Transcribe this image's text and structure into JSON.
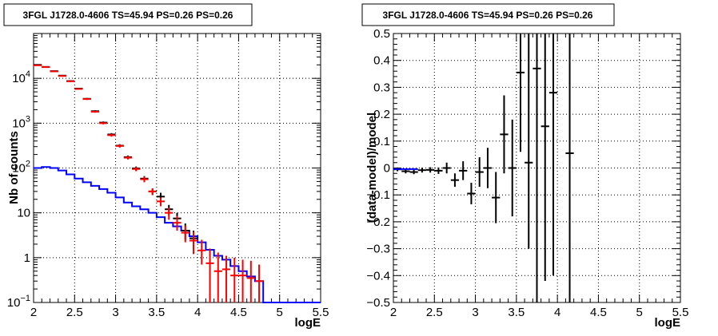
{
  "chart_data": [
    {
      "type": "line",
      "title": "3FGL J1728.0-4606 TS=45.94 PS=0.26 PS=0.26",
      "xlabel": "logE",
      "ylabel": "Nb of counts",
      "xlim": [
        2,
        5.5
      ],
      "ylim": [
        0.1,
        100000
      ],
      "yscale": "log",
      "grid": true,
      "xticks": [
        {
          "value": 2,
          "label": "2"
        },
        {
          "value": 2.5,
          "label": "2.5"
        },
        {
          "value": 3,
          "label": "3"
        },
        {
          "value": 3.5,
          "label": "3.5"
        },
        {
          "value": 4,
          "label": "4"
        },
        {
          "value": 4.5,
          "label": "4.5"
        },
        {
          "value": 5,
          "label": "5"
        },
        {
          "value": 5.5,
          "label": "5.5"
        }
      ],
      "yticks": [
        {
          "value": 0.1,
          "label": "10",
          "exp": "−1"
        },
        {
          "value": 1,
          "label": "1",
          "exp": ""
        },
        {
          "value": 10,
          "label": "10",
          "exp": ""
        },
        {
          "value": 100,
          "label": "10",
          "exp": "2"
        },
        {
          "value": 1000,
          "label": "10",
          "exp": "3"
        },
        {
          "value": 10000,
          "label": "10",
          "exp": "4"
        }
      ],
      "series": [
        {
          "color": "#0000ff",
          "kind": "step",
          "edges": [
            2.0,
            2.1,
            2.2,
            2.3,
            2.4,
            2.5,
            2.6,
            2.7,
            2.8,
            2.9,
            3.0,
            3.1,
            3.2,
            3.3,
            3.4,
            3.5,
            3.6,
            3.7,
            3.8,
            3.9,
            4.0,
            4.1,
            4.2,
            4.3,
            4.4,
            4.5,
            4.6,
            4.7,
            4.8,
            4.9,
            5.0,
            5.1,
            5.2,
            5.3,
            5.4,
            5.5
          ],
          "values": [
            100,
            105,
            100,
            88,
            72,
            58,
            48,
            40,
            34,
            28,
            22,
            17,
            14,
            12,
            10,
            8,
            6,
            5,
            4,
            3,
            2.2,
            1.5,
            1.1,
            0.9,
            0.65,
            0.5,
            0.38,
            0.3,
            0.1,
            0.1,
            0.1,
            0.1,
            0.1,
            0.1,
            0.1
          ]
        },
        {
          "color": "#000000",
          "kind": "points",
          "points": [
            {
              "x": 2.05,
              "y": 20000,
              "lo": 19500,
              "hi": 20500
            },
            {
              "x": 2.15,
              "y": 18000,
              "lo": 17500,
              "hi": 18500
            },
            {
              "x": 2.25,
              "y": 14500,
              "lo": 14100,
              "hi": 14900
            },
            {
              "x": 2.35,
              "y": 11500,
              "lo": 11100,
              "hi": 11900
            },
            {
              "x": 2.45,
              "y": 8700,
              "lo": 8400,
              "hi": 9000
            },
            {
              "x": 2.55,
              "y": 5900,
              "lo": 5700,
              "hi": 6100
            },
            {
              "x": 2.65,
              "y": 3500,
              "lo": 3350,
              "hi": 3650
            },
            {
              "x": 2.75,
              "y": 1850,
              "lo": 1760,
              "hi": 1940
            },
            {
              "x": 2.85,
              "y": 1030,
              "lo": 970,
              "hi": 1090
            },
            {
              "x": 2.95,
              "y": 560,
              "lo": 520,
              "hi": 600
            },
            {
              "x": 3.05,
              "y": 315,
              "lo": 290,
              "hi": 340
            },
            {
              "x": 3.15,
              "y": 175,
              "lo": 160,
              "hi": 190
            },
            {
              "x": 3.25,
              "y": 98,
              "lo": 88,
              "hi": 108
            },
            {
              "x": 3.35,
              "y": 58,
              "lo": 50,
              "hi": 66
            },
            {
              "x": 3.45,
              "y": 30,
              "lo": 25,
              "hi": 35
            },
            {
              "x": 3.55,
              "y": 23,
              "lo": 18,
              "hi": 28
            },
            {
              "x": 3.65,
              "y": 12,
              "lo": 9,
              "hi": 15
            },
            {
              "x": 3.75,
              "y": 7.5,
              "lo": 5,
              "hi": 10
            },
            {
              "x": 3.85,
              "y": 4,
              "lo": 2.5,
              "hi": 5.8
            },
            {
              "x": 3.95,
              "y": 2.7,
              "lo": 1.6,
              "hi": 4
            }
          ]
        },
        {
          "color": "#ff0000",
          "kind": "points",
          "points": [
            {
              "x": 2.05,
              "y": 19500,
              "lo": 19000,
              "hi": 20000
            },
            {
              "x": 2.15,
              "y": 17800,
              "lo": 17300,
              "hi": 18300
            },
            {
              "x": 2.25,
              "y": 14300,
              "lo": 13900,
              "hi": 14700
            },
            {
              "x": 2.35,
              "y": 11300,
              "lo": 10900,
              "hi": 11700
            },
            {
              "x": 2.45,
              "y": 8600,
              "lo": 8300,
              "hi": 8900
            },
            {
              "x": 2.55,
              "y": 5800,
              "lo": 5600,
              "hi": 6000
            },
            {
              "x": 2.65,
              "y": 3450,
              "lo": 3300,
              "hi": 3600
            },
            {
              "x": 2.75,
              "y": 1800,
              "lo": 1710,
              "hi": 1890
            },
            {
              "x": 2.85,
              "y": 1000,
              "lo": 940,
              "hi": 1060
            },
            {
              "x": 2.95,
              "y": 540,
              "lo": 500,
              "hi": 580
            },
            {
              "x": 3.05,
              "y": 310,
              "lo": 285,
              "hi": 335
            },
            {
              "x": 3.15,
              "y": 170,
              "lo": 155,
              "hi": 185
            },
            {
              "x": 3.25,
              "y": 95,
              "lo": 85,
              "hi": 105
            },
            {
              "x": 3.35,
              "y": 56,
              "lo": 48,
              "hi": 64
            },
            {
              "x": 3.45,
              "y": 30,
              "lo": 25,
              "hi": 35
            },
            {
              "x": 3.55,
              "y": 18,
              "lo": 14,
              "hi": 22
            },
            {
              "x": 3.65,
              "y": 10,
              "lo": 7,
              "hi": 13
            },
            {
              "x": 3.75,
              "y": 6,
              "lo": 4,
              "hi": 8.5
            },
            {
              "x": 3.85,
              "y": 3.6,
              "lo": 2.2,
              "hi": 5.2
            },
            {
              "x": 3.95,
              "y": 2.4,
              "lo": 1.2,
              "hi": 3.8
            },
            {
              "x": 4.05,
              "y": 1.45,
              "lo": 0.7,
              "hi": 2.5
            },
            {
              "x": 4.15,
              "y": 0.75,
              "lo": 0.1,
              "hi": 1.6
            },
            {
              "x": 4.25,
              "y": 0.5,
              "lo": 0.1,
              "hi": 1.3
            },
            {
              "x": 4.35,
              "y": 0.55,
              "lo": 0.1,
              "hi": 1.1
            },
            {
              "x": 4.45,
              "y": 0.4,
              "lo": 0.1,
              "hi": 1.0
            },
            {
              "x": 4.55,
              "y": 0.4,
              "lo": 0.1,
              "hi": 0.9
            },
            {
              "x": 4.65,
              "y": 0.35,
              "lo": 0.1,
              "hi": 0.85
            },
            {
              "x": 4.75,
              "y": 0.3,
              "lo": 0.1,
              "hi": 0.7
            }
          ]
        }
      ]
    },
    {
      "type": "scatter",
      "title": "3FGL J1728.0-4606 TS=45.94 PS=0.26 PS=0.26",
      "xlabel": "logE",
      "ylabel": "(data-model)/model",
      "xlim": [
        2,
        5.5
      ],
      "ylim": [
        -0.5,
        0.5
      ],
      "grid": true,
      "xticks": [
        {
          "value": 2,
          "label": "2"
        },
        {
          "value": 2.5,
          "label": "2.5"
        },
        {
          "value": 3,
          "label": "3"
        },
        {
          "value": 3.5,
          "label": "3.5"
        },
        {
          "value": 4,
          "label": "4"
        },
        {
          "value": 4.5,
          "label": "4.5"
        },
        {
          "value": 5,
          "label": "5"
        },
        {
          "value": 5.5,
          "label": "5.5"
        }
      ],
      "yticks": [
        {
          "value": -0.5,
          "label": "−0.5"
        },
        {
          "value": -0.4,
          "label": "−0.4"
        },
        {
          "value": -0.3,
          "label": "−0.3"
        },
        {
          "value": -0.2,
          "label": "−0.2"
        },
        {
          "value": -0.1,
          "label": "−0.1"
        },
        {
          "value": 0,
          "label": "0"
        },
        {
          "value": 0.1,
          "label": "0.1"
        },
        {
          "value": 0.2,
          "label": "0.2"
        },
        {
          "value": 0.3,
          "label": "0.3"
        },
        {
          "value": 0.4,
          "label": "0.4"
        },
        {
          "value": 0.5,
          "label": "0.5"
        }
      ],
      "series": [
        {
          "color": "#000000",
          "kind": "points",
          "points": [
            {
              "x": 2.05,
              "y": -0.005,
              "lo": -0.012,
              "hi": 0.002
            },
            {
              "x": 2.15,
              "y": -0.012,
              "lo": -0.02,
              "hi": -0.004
            },
            {
              "x": 2.25,
              "y": -0.015,
              "lo": -0.023,
              "hi": -0.007
            },
            {
              "x": 2.35,
              "y": -0.008,
              "lo": -0.017,
              "hi": 0.001
            },
            {
              "x": 2.45,
              "y": -0.007,
              "lo": -0.017,
              "hi": 0.003
            },
            {
              "x": 2.55,
              "y": -0.01,
              "lo": -0.022,
              "hi": 0.002
            },
            {
              "x": 2.65,
              "y": 0.0,
              "lo": -0.02,
              "hi": 0.02
            },
            {
              "x": 2.75,
              "y": -0.045,
              "lo": -0.07,
              "hi": -0.02
            },
            {
              "x": 2.85,
              "y": -0.01,
              "lo": -0.045,
              "hi": 0.025
            },
            {
              "x": 2.95,
              "y": -0.095,
              "lo": -0.135,
              "hi": -0.055
            },
            {
              "x": 3.05,
              "y": -0.015,
              "lo": -0.07,
              "hi": 0.04
            },
            {
              "x": 3.15,
              "y": 0.0,
              "lo": -0.075,
              "hi": 0.075
            },
            {
              "x": 3.25,
              "y": -0.11,
              "lo": -0.205,
              "hi": -0.015
            },
            {
              "x": 3.35,
              "y": 0.125,
              "lo": -0.02,
              "hi": 0.27
            },
            {
              "x": 3.45,
              "y": 0.0,
              "lo": -0.18,
              "hi": 0.18
            },
            {
              "x": 3.55,
              "y": 0.355,
              "lo": 0.06,
              "hi": 0.5
            },
            {
              "x": 3.65,
              "y": 0.02,
              "lo": -0.3,
              "hi": 0.5
            },
            {
              "x": 3.75,
              "y": 0.37,
              "lo": -0.5,
              "hi": 0.5
            },
            {
              "x": 3.85,
              "y": 0.155,
              "lo": -0.42,
              "hi": 0.5
            },
            {
              "x": 3.95,
              "y": 0.28,
              "lo": -0.4,
              "hi": 0.5
            },
            {
              "x": 4.15,
              "y": 0.055,
              "lo": -0.5,
              "hi": 0.5
            }
          ]
        },
        {
          "color": "#0000ff",
          "kind": "line",
          "points": [
            {
              "x": 2.0,
              "y": -0.004
            },
            {
              "x": 2.3,
              "y": -0.004
            }
          ]
        }
      ]
    }
  ]
}
